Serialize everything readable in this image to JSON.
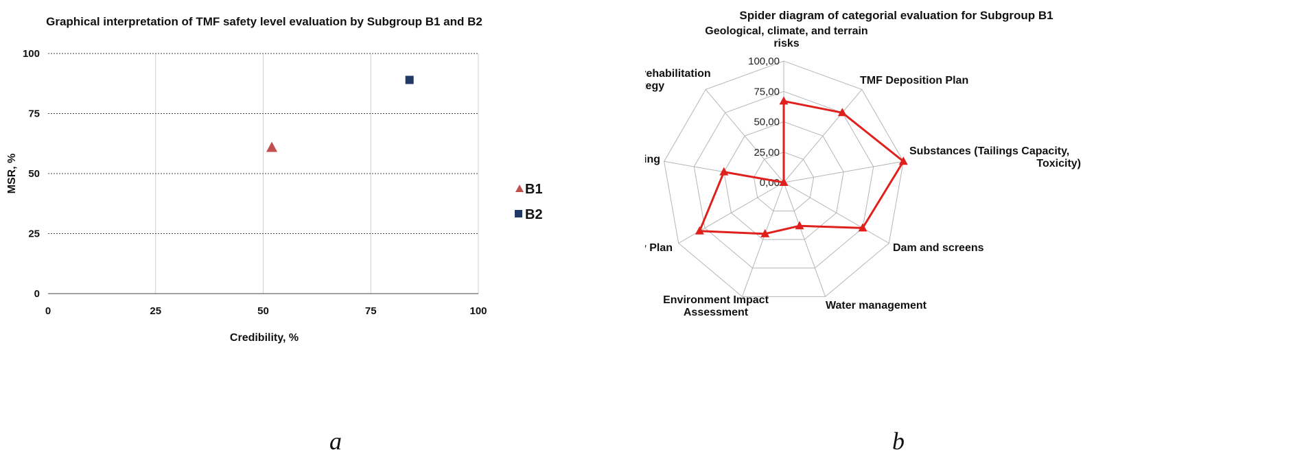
{
  "chart_data": [
    {
      "type": "scatter",
      "title": "Graphical interpretation of TMF safety level evaluation by Subgroup B1 and B2",
      "xlabel": "Credibility, %",
      "ylabel": "MSR, %",
      "xlim": [
        0,
        100
      ],
      "ylim": [
        0,
        100
      ],
      "xticks": [
        "0",
        "25",
        "50",
        "75",
        "100"
      ],
      "yticks": [
        "0",
        "25",
        "50",
        "75",
        "100"
      ],
      "grid": true,
      "legend": "right",
      "series": [
        {
          "name": "B1",
          "marker": "triangle",
          "color": "#c0504d",
          "points": [
            {
              "x": 52,
              "y": 61
            }
          ]
        },
        {
          "name": "B2",
          "marker": "square",
          "color": "#1f3864",
          "points": [
            {
              "x": 84,
              "y": 89
            }
          ]
        }
      ]
    },
    {
      "type": "radar",
      "title": "Spider diagram of categorial evaluation for Subgroup B1",
      "rlim": [
        0,
        100
      ],
      "rticks": [
        "0,00",
        "25,00",
        "50,00",
        "75,00",
        "100,00"
      ],
      "color": "#e0201c",
      "categories": [
        "Geological, climate, and terrain risks",
        "TMF Deposition Plan",
        "Substances (Tailings Capacity, Toxicity)",
        "Dam and screens",
        "Water management",
        "Environment Impact Assessment",
        "Emergency Plan",
        "Monitoring",
        "Closure and rehabilitation strategy"
      ],
      "values": [
        67,
        75,
        100,
        75,
        38,
        45,
        80,
        50,
        0
      ]
    }
  ],
  "labels": {
    "a": "a",
    "b": "b"
  }
}
